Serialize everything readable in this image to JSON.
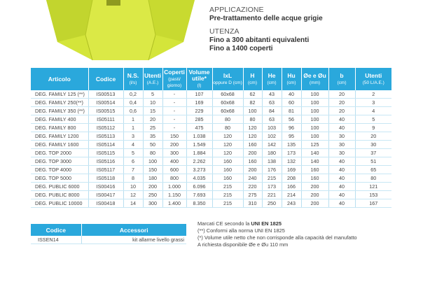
{
  "info": {
    "applicazione_heading": "APPLICAZIONE",
    "applicazione_value": "Pre-trattamento delle acque grigie",
    "utenza_heading": "UTENZA",
    "utenza_lines": [
      "Fino a 300 abitanti equivalenti",
      "Fino a 1400 coperti"
    ]
  },
  "table": {
    "headers": [
      {
        "label": "Articolo",
        "unit": ""
      },
      {
        "label": "Codice",
        "unit": ""
      },
      {
        "label": "N.S.",
        "unit": "(l/s)"
      },
      {
        "label": "Utenti",
        "unit": "(A.E.)"
      },
      {
        "label": "Coperti",
        "unit": "(pasti/ giorno)"
      },
      {
        "label": "Volume utile*",
        "unit": "(l)"
      },
      {
        "label": "lxL",
        "unit": "oppure D (cm)"
      },
      {
        "label": "H",
        "unit": "(cm)"
      },
      {
        "label": "He",
        "unit": "(cm)"
      },
      {
        "label": "Hu",
        "unit": "(cm)"
      },
      {
        "label": "Øe e Øu",
        "unit": "(mm)"
      },
      {
        "label": "b",
        "unit": "(cm)"
      },
      {
        "label": "Utenti",
        "unit": "(50 L/A.E.)"
      }
    ],
    "rows": [
      [
        "DEG. FAMILY 125 (**)",
        "IS00513",
        "0,2",
        "5",
        "-",
        "107",
        "60x68",
        "62",
        "43",
        "40",
        "100",
        "20",
        "2"
      ],
      [
        "DEG. FAMILY 250(**)",
        "IS00514",
        "0,4",
        "10",
        "-",
        "169",
        "60x68",
        "82",
        "63",
        "60",
        "100",
        "20",
        "3"
      ],
      [
        "DEG. FAMILY 350 (**)",
        "IS00515",
        "0,6",
        "15",
        "-",
        "229",
        "60x68",
        "100",
        "84",
        "81",
        "100",
        "20",
        "4"
      ],
      [
        "DEG. FAMILY 400",
        "IS05111",
        "1",
        "20",
        "-",
        "285",
        "80",
        "80",
        "63",
        "56",
        "100",
        "40",
        "5"
      ],
      [
        "DEG. FAMILY 800",
        "IS05112",
        "1",
        "25",
        "-",
        "475",
        "80",
        "120",
        "103",
        "96",
        "100",
        "40",
        "9"
      ],
      [
        "DEG. FAMILY 1200",
        "IS05113",
        "3",
        "35",
        "150",
        "1.038",
        "120",
        "120",
        "102",
        "95",
        "100",
        "30",
        "20"
      ],
      [
        "DEG. FAMILY 1600",
        "IS05114",
        "4",
        "50",
        "200",
        "1.549",
        "120",
        "160",
        "142",
        "135",
        "125",
        "30",
        "30"
      ],
      [
        "DEG. TOP 2000",
        "IS05115",
        "5",
        "80",
        "300",
        "1.884",
        "120",
        "200",
        "180",
        "173",
        "140",
        "30",
        "37"
      ],
      [
        "DEG. TOP 3000",
        "IS05116",
        "6",
        "100",
        "400",
        "2.262",
        "160",
        "160",
        "138",
        "132",
        "140",
        "40",
        "51"
      ],
      [
        "DEG. TOP 4000",
        "IS05117",
        "7",
        "150",
        "600",
        "3.273",
        "160",
        "200",
        "176",
        "169",
        "160",
        "40",
        "65"
      ],
      [
        "DEG. TOP 5000",
        "IS05118",
        "8",
        "180",
        "800",
        "4.035",
        "160",
        "240",
        "215",
        "208",
        "160",
        "40",
        "80"
      ],
      [
        "DEG. PUBLIC 6000",
        "IS00416",
        "10",
        "200",
        "1.000",
        "6.096",
        "215",
        "220",
        "173",
        "166",
        "200",
        "40",
        "121"
      ],
      [
        "DEG. PUBLIC 8000",
        "IS00417",
        "12",
        "250",
        "1.150",
        "7.693",
        "215",
        "275",
        "221",
        "214",
        "200",
        "40",
        "153"
      ],
      [
        "DEG. PUBLIC 10000",
        "IS00418",
        "14",
        "300",
        "1.400",
        "8.350",
        "215",
        "310",
        "250",
        "243",
        "200",
        "40",
        "167"
      ]
    ]
  },
  "accessori": {
    "header_code": "Codice",
    "header_name": "Accessori",
    "rows": [
      [
        "ISSEN14",
        "kit allarme livello grassi"
      ]
    ]
  },
  "notes": {
    "line1_prefix": "Marcati CE secondo la",
    "line1_bold": "UNI EN 1825",
    "line2": "(**) Conformi alla norma UNI EN 1825",
    "line3": "(*) Volume utile netto che non corrisponde alla capacità del manufatto",
    "line4": "A richiesta disponibile Øe e Øu 110 mm"
  },
  "colors": {
    "header_blue": "#2aa8dc",
    "tank_yellow": "#d6e63a"
  }
}
